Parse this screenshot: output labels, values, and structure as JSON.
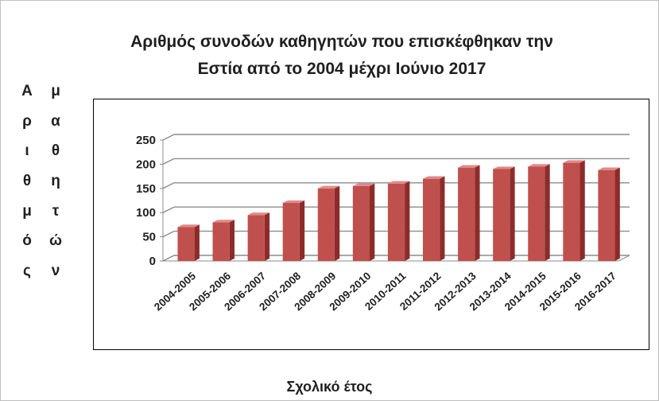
{
  "chart_data": {
    "type": "bar",
    "title_lines": [
      "Αριθμός συνοδών καθηγητών που επισκέφθηκαν την",
      "Εστία από το 2004 μέχρι Ιούνιο 2017"
    ],
    "ylabel_line1": [
      "Α",
      "ρ",
      "ι",
      "θ",
      "μ",
      "ό",
      "ς"
    ],
    "ylabel_line2": [
      "μ",
      "α",
      "θ",
      "η",
      "τ",
      "ώ",
      "ν"
    ],
    "xlabel": "Σχολικό έτος",
    "categories": [
      "2004-2005",
      "2005-2006",
      "2006-2007",
      "2007-2008",
      "2008-2009",
      "2009-2010",
      "2010-2011",
      "2011-2012",
      "2012-2013",
      "2013-2014",
      "2014-2015",
      "2015-2016",
      "2016-2017"
    ],
    "values": [
      70,
      80,
      95,
      120,
      150,
      155,
      160,
      170,
      193,
      190,
      195,
      203,
      188
    ],
    "ylim": [
      0,
      250
    ],
    "yticks": [
      0,
      50,
      100,
      150,
      200,
      250
    ],
    "grid": true,
    "bar_color": "#c0504d",
    "bar_color_dark": "#8c2c2a",
    "bar_color_light": "#e08a88"
  }
}
